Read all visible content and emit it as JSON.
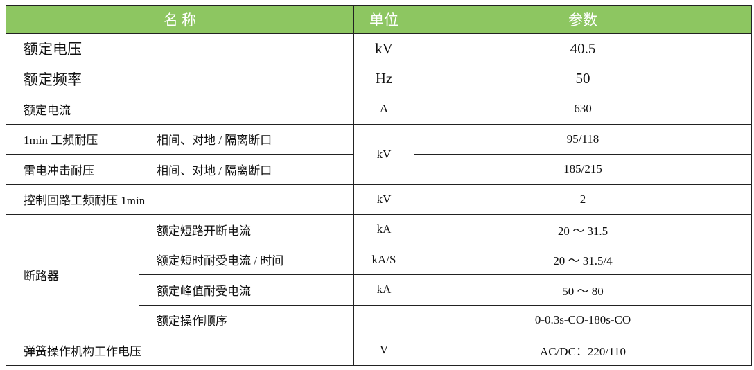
{
  "header": {
    "name": "名 称",
    "unit": "单位",
    "param": "参数",
    "color": "#8dc661"
  },
  "rows": {
    "r1": {
      "name": "额定电压",
      "unit": "kV",
      "value": "40.5"
    },
    "r2": {
      "name": "额定频率",
      "unit": "Hz",
      "value": "50"
    },
    "r3": {
      "name": "额定电流",
      "unit": "A",
      "value": "630"
    },
    "r4": {
      "name": "1min 工频耐压",
      "sub": "相间、对地 / 隔离断口",
      "unit": "kV",
      "value": "95/118"
    },
    "r5": {
      "name": "雷电冲击耐压",
      "sub": "相间、对地 / 隔离断口",
      "value": "185/215"
    },
    "r6": {
      "name": "控制回路工频耐压 1min",
      "unit": "kV",
      "value": "2"
    },
    "breaker": {
      "name": "断路器",
      "items": [
        {
          "sub": "额定短路开断电流",
          "unit": "kA",
          "value": "20 ～ 31.5"
        },
        {
          "sub": "额定短时耐受电流 / 时间",
          "unit": "kA/S",
          "value": "20 ～ 31.5/4"
        },
        {
          "sub": "额定峰值耐受电流",
          "unit": "kA",
          "value": "50 ～ 80"
        },
        {
          "sub": "额定操作顺序",
          "unit": "",
          "value": "0-0.3s-CO-180s-CO"
        }
      ]
    },
    "r7": {
      "name": "弹簧操作机构工作电压",
      "unit": "V",
      "value": "AC/DC：220/110"
    }
  }
}
